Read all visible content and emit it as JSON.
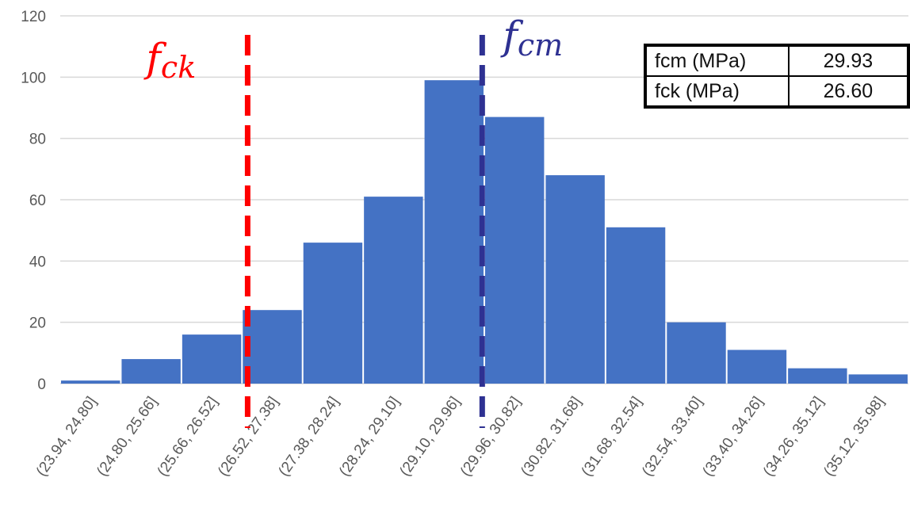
{
  "chart_data": {
    "type": "bar",
    "title": "",
    "xlabel": "",
    "ylabel": "",
    "categories": [
      "(23.94, 24.80]",
      "(24.80, 25.66]",
      "(25.66, 26.52]",
      "(26.52, 27.38]",
      "(27.38, 28.24]",
      "(28.24, 29.10]",
      "(29.10, 29.96]",
      "(29.96, 30.82]",
      "(30.82, 31.68]",
      "(31.68, 32.54]",
      "(32.54, 33.40]",
      "(33.40, 34.26]",
      "(34.26, 35.12]",
      "(35.12, 35.98]"
    ],
    "values": [
      1,
      8,
      16,
      24,
      46,
      61,
      99,
      87,
      68,
      51,
      20,
      11,
      5,
      3
    ],
    "ylim": [
      0,
      120
    ],
    "yticks": [
      0,
      20,
      40,
      60,
      80,
      100,
      120
    ],
    "grid": true,
    "bar_color": "#4472c4",
    "reference_lines": [
      {
        "label_base": "f",
        "label_sub": "ck",
        "x": 26.6,
        "color": "#ff0000"
      },
      {
        "label_base": "f",
        "label_sub": "cm",
        "x": 29.93,
        "color": "#2e3192"
      }
    ],
    "bin_range": [
      23.94,
      35.98
    ]
  },
  "stats_table": {
    "rows": [
      {
        "label": "fcm (MPa)",
        "value": "29.93"
      },
      {
        "label": "fck (MPa)",
        "value": "26.60"
      }
    ]
  }
}
